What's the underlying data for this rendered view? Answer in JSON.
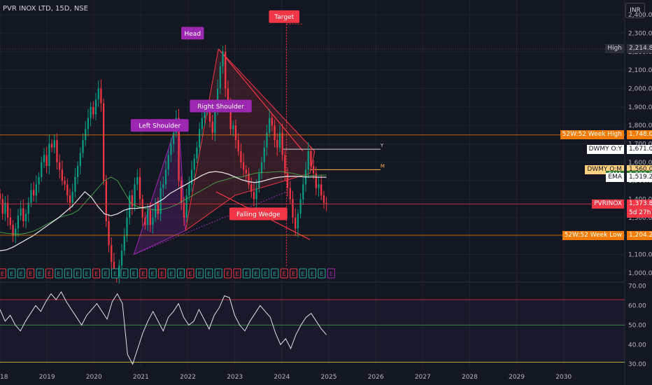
{
  "symbol_header": "PVR INOX LTD, 15D, NSE",
  "currency": "INR",
  "chart_data": {
    "type": "candlestick",
    "price_axis": {
      "ticks": [
        "2,400.00",
        "2,300.00",
        "2,200.00",
        "2,100.00",
        "2,000.00",
        "1,900.00",
        "1,800.00",
        "1,700.00",
        "1,600.00",
        "1,500.00",
        "1,400.00",
        "1,300.00",
        "1,200.00",
        "1,100.00",
        "1,000.00"
      ],
      "range": [
        950,
        2480
      ]
    },
    "time_axis": {
      "ticks": [
        "2018",
        "2019",
        "2020",
        "2021",
        "2022",
        "2023",
        "2024",
        "2025",
        "2026",
        "2027",
        "2028",
        "2029",
        "2030"
      ],
      "range": [
        2018.0,
        2031.3
      ]
    },
    "rsi_axis": {
      "ticks": [
        "70.00",
        "60.00",
        "50.00",
        "40.00",
        "30.00"
      ],
      "range": [
        29,
        72
      ],
      "upper_band": 63,
      "middle_band": 50,
      "lower_band": 31
    },
    "candles_close": [
      1400,
      1320,
      1380,
      1300,
      1260,
      1200,
      1240,
      1310,
      1350,
      1280,
      1320,
      1380,
      1450,
      1420,
      1480,
      1520,
      1600,
      1640,
      1580,
      1700,
      1680,
      1720,
      1600,
      1560,
      1500,
      1480,
      1420,
      1380,
      1440,
      1520,
      1580,
      1650,
      1720,
      1780,
      1840,
      1900,
      1860,
      1940,
      2000,
      1920,
      1500,
      1280,
      1150,
      1060,
      1000,
      980,
      1040,
      1120,
      1200,
      1300,
      1420,
      1360,
      1480,
      1520,
      1400,
      1300,
      1260,
      1340,
      1260,
      1300,
      1380,
      1320,
      1460,
      1480,
      1560,
      1640,
      1700,
      1760,
      1840,
      1500,
      1380,
      1300,
      1420,
      1480,
      1560,
      1620,
      1680,
      1780,
      1840,
      1880,
      1900,
      1820,
      1760,
      1880,
      2000,
      2120,
      2200,
      2000,
      1900,
      1780,
      1800,
      1720,
      1660,
      1600,
      1560,
      1540,
      1480,
      1440,
      1400,
      1460,
      1540,
      1600,
      1680,
      1760,
      1840,
      1800,
      1720,
      1680,
      1760,
      1640,
      1540,
      1460,
      1400,
      1300,
      1240,
      1320,
      1400,
      1480,
      1560,
      1660,
      1580,
      1540,
      1460,
      1480,
      1420,
      1380,
      1374
    ],
    "candle_time_range": [
      2018.0,
      2024.95
    ],
    "ema_slow": [
      1220,
      1215,
      1212,
      1210,
      1215,
      1225,
      1240,
      1260,
      1280,
      1300,
      1310,
      1320,
      1340,
      1380,
      1420,
      1460,
      1500,
      1520,
      1500,
      1440,
      1380,
      1360,
      1350,
      1345,
      1340,
      1345,
      1355,
      1370,
      1390,
      1410,
      1430,
      1450,
      1470,
      1490,
      1500,
      1510,
      1520,
      1520,
      1530,
      1540,
      1545,
      1545,
      1548,
      1550,
      1545,
      1538,
      1530,
      1528,
      1528,
      1530,
      1531
    ],
    "ema_fast": [
      1120,
      1125,
      1140,
      1160,
      1180,
      1200,
      1225,
      1250,
      1275,
      1300,
      1330,
      1360,
      1400,
      1440,
      1410,
      1360,
      1320,
      1310,
      1320,
      1340,
      1350,
      1350,
      1355,
      1360,
      1380,
      1400,
      1430,
      1450,
      1470,
      1490,
      1510,
      1530,
      1545,
      1550,
      1545,
      1535,
      1520,
      1505,
      1495,
      1490,
      1495,
      1505,
      1515,
      1520,
      1523,
      1524,
      1522,
      1520,
      1520,
      1519,
      1519
    ],
    "rsi": [
      58,
      52,
      55,
      50,
      47,
      52,
      56,
      60,
      57,
      62,
      66,
      63,
      67,
      62,
      58,
      54,
      50,
      55,
      58,
      61,
      57,
      53,
      62,
      66,
      61,
      35,
      30,
      38,
      46,
      52,
      57,
      52,
      47,
      54,
      57,
      61,
      54,
      50,
      52,
      58,
      53,
      48,
      55,
      59,
      65,
      64,
      55,
      50,
      47,
      52,
      56,
      60,
      57,
      54,
      46,
      40,
      43,
      38,
      45,
      50,
      54,
      56,
      52,
      48,
      45
    ],
    "horizontal_levels": [
      {
        "name": "52W:52 Week High",
        "value": "1,748.00",
        "color": "#f57c00"
      },
      {
        "name": "DWMY O:Y",
        "value": "1,671.00",
        "color": "#ffffff"
      },
      {
        "name": "DWMY O:M",
        "value": "1,560.00",
        "color": "#ffd180"
      },
      {
        "name": "EMA",
        "value": "1,530.79",
        "color": "#4caf50"
      },
      {
        "name": "EMA",
        "value": "1,519.21",
        "color": "#ffffff"
      },
      {
        "name": "PVRINOX",
        "value": "1,373.85",
        "color": "#f23645"
      },
      {
        "name": "52W:52 Week Low",
        "value": "1,204.20",
        "color": "#f57c00"
      },
      {
        "name": "High",
        "value": "2,214.85",
        "color": "#2a2e39"
      }
    ],
    "countdown": "5d 27h",
    "level_marks": [
      "Y",
      "M"
    ],
    "annotations": [
      {
        "label": "Left Shoulder",
        "color": "#9c27b0",
        "value": 1800,
        "time": 2021.4
      },
      {
        "label": "Head",
        "color": "#9c27b0",
        "value": 2300,
        "time": 2022.1
      },
      {
        "label": "Right Shoulder",
        "color": "#9c27b0",
        "value": 1905,
        "time": 2022.7
      },
      {
        "label": "Falling Wedge",
        "color": "#f23645",
        "value": 1320,
        "time": 2023.5
      },
      {
        "label": "Target",
        "color": "#f23645",
        "value": 2390,
        "time": 2024.05
      }
    ],
    "event_marks": [
      "E",
      "E",
      "E",
      "E",
      "E",
      "E",
      "E",
      "E",
      "E",
      "E",
      "E",
      "E",
      "E",
      "E",
      "E",
      "E",
      "E",
      "E",
      "E",
      "E",
      "E",
      "E",
      "E",
      "E",
      "E",
      "E",
      "E",
      "E",
      "E",
      "E",
      "E",
      "E",
      "E",
      "E",
      "E"
    ]
  }
}
